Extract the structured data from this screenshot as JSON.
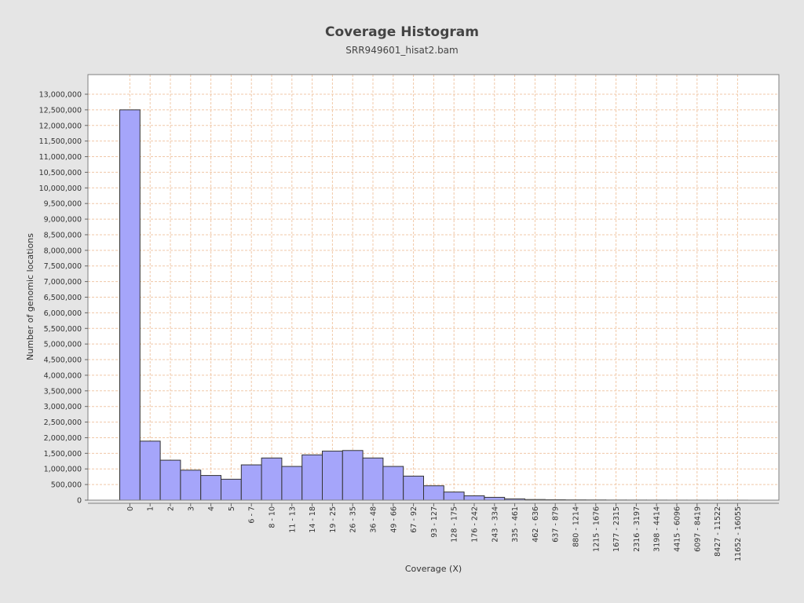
{
  "chart_data": {
    "type": "bar",
    "title": "Coverage Histogram",
    "subtitle": "SRR949601_hisat2.bam",
    "xlabel": "Coverage (X)",
    "ylabel": "Number of genomic locations",
    "ylim": [
      0,
      13000000
    ],
    "y_tick_step": 500000,
    "grid": true,
    "legend": "none",
    "colors": {
      "background": "#e5e5e5",
      "plot_background": "#ffffff",
      "bar_fill": "#a5a5fa",
      "bar_stroke": "#333333",
      "grid": "#f0c8a8"
    },
    "categories": [
      "0",
      "1",
      "2",
      "3",
      "4",
      "5",
      "6 - 7",
      "8 - 10",
      "11 - 13",
      "14 - 18",
      "19 - 25",
      "26 - 35",
      "36 - 48",
      "49 - 66",
      "67 - 92",
      "93 - 127",
      "128 - 175",
      "176 - 242",
      "243 - 334",
      "335 - 461",
      "462 - 636",
      "637 - 879",
      "880 - 1214",
      "1215 - 1676",
      "1677 - 2315",
      "2316 - 3197",
      "3198 - 4414",
      "4415 - 6096",
      "6097 - 8419",
      "8427 - 11522",
      "11652 - 16055"
    ],
    "values": [
      12500000,
      1890000,
      1280000,
      960000,
      790000,
      670000,
      1130000,
      1350000,
      1080000,
      1450000,
      1570000,
      1590000,
      1350000,
      1080000,
      770000,
      460000,
      260000,
      140000,
      90000,
      40000,
      20000,
      15000,
      10000,
      8000,
      5000,
      4000,
      3000,
      2000,
      1500,
      1000,
      1000
    ]
  }
}
